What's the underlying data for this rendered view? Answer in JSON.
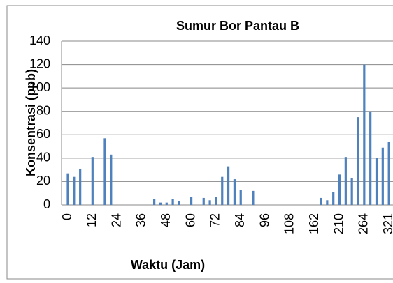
{
  "chart_data": {
    "type": "bar",
    "title": "Sumur Bor Pantau B",
    "x_label": "Waktu (Jam)",
    "y_label": "Konsentrasi  (ppb)",
    "categories": [
      "0",
      null,
      null,
      null,
      "12",
      null,
      null,
      null,
      "24",
      null,
      null,
      null,
      "36",
      null,
      null,
      null,
      "48",
      null,
      null,
      null,
      "60",
      null,
      null,
      null,
      "72",
      null,
      null,
      null,
      "84",
      null,
      null,
      null,
      "96",
      null,
      null,
      null,
      "108",
      null,
      null,
      null,
      "162",
      null,
      null,
      null,
      "210",
      null,
      null,
      null,
      "264",
      null,
      null,
      null,
      "321"
    ],
    "values": [
      27,
      24,
      31,
      0,
      41,
      0,
      57,
      43,
      0,
      0,
      0,
      0,
      0,
      0,
      5,
      2,
      2,
      5,
      3,
      0,
      7,
      0,
      6,
      4,
      7,
      24,
      33,
      22,
      13,
      0,
      12,
      0,
      0,
      0,
      0,
      0,
      0,
      0,
      0,
      0,
      0,
      6,
      4,
      11,
      26,
      41,
      23,
      75,
      120,
      80,
      40,
      49,
      54
    ],
    "color": "#4f81bd",
    "ylim": [
      0,
      140
    ],
    "yticks": [
      0,
      20,
      40,
      60,
      80,
      100,
      120,
      140
    ],
    "grid": true
  }
}
